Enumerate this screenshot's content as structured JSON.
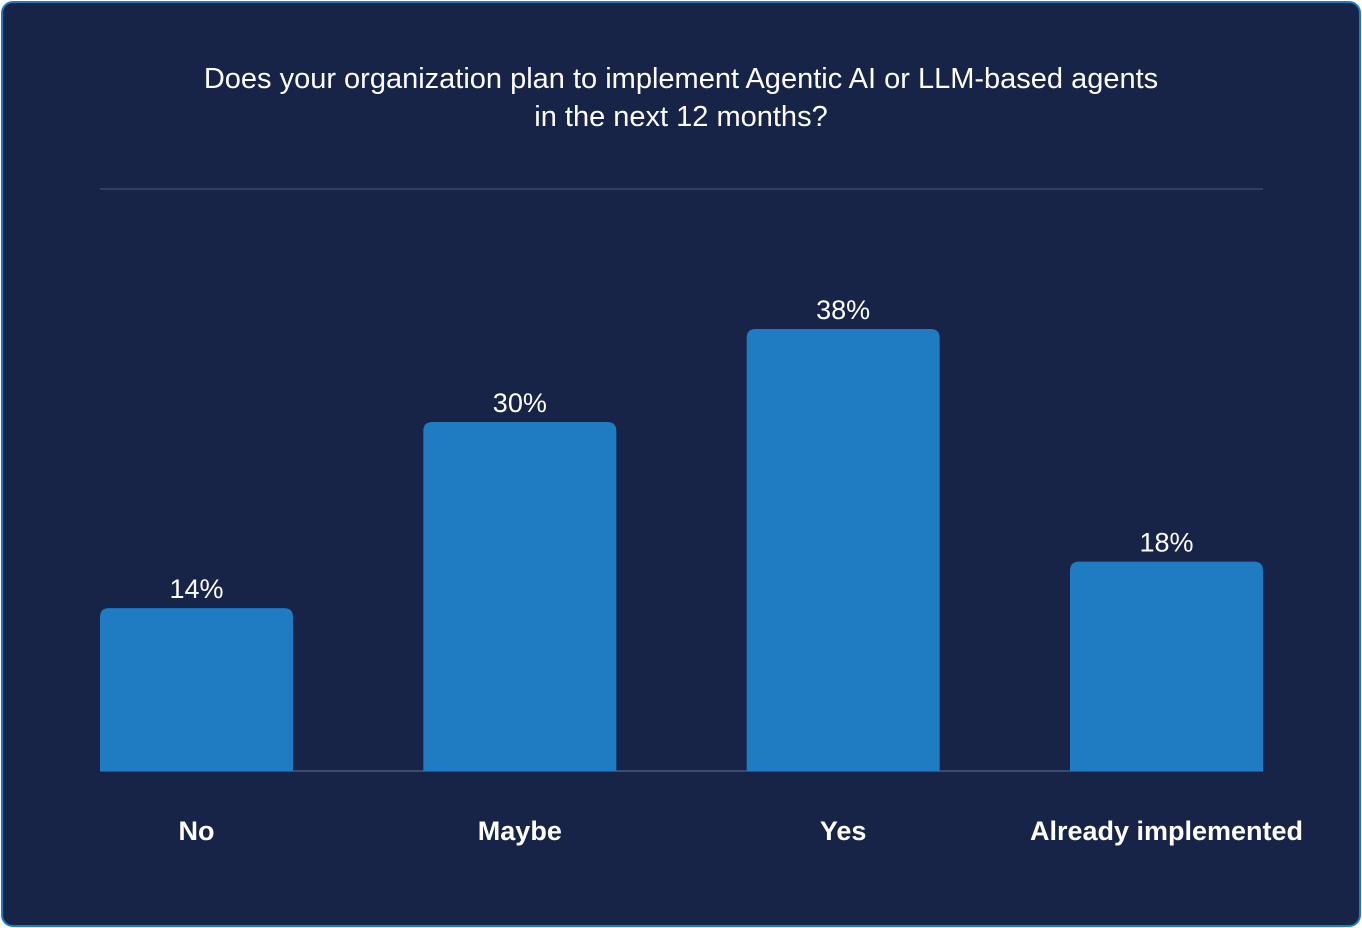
{
  "chart_data": {
    "type": "bar",
    "title_lines": [
      "Does your organization plan to implement Agentic AI or LLM-based agents",
      "in the next 12 months?"
    ],
    "categories": [
      "No",
      "Maybe",
      "Yes",
      "Already implemented"
    ],
    "values": [
      14,
      30,
      38,
      18
    ],
    "value_labels": [
      "14%",
      "30%",
      "38%",
      "18%"
    ],
    "ylim": [
      0,
      38
    ],
    "xlabel": "",
    "ylabel": "",
    "grid": false,
    "legend": "none"
  },
  "colors": {
    "background": "#172347",
    "border": "#1f7bc2",
    "bar": "#1f7bc2",
    "text": "#ffffff",
    "rule": "#3a4a6b"
  }
}
